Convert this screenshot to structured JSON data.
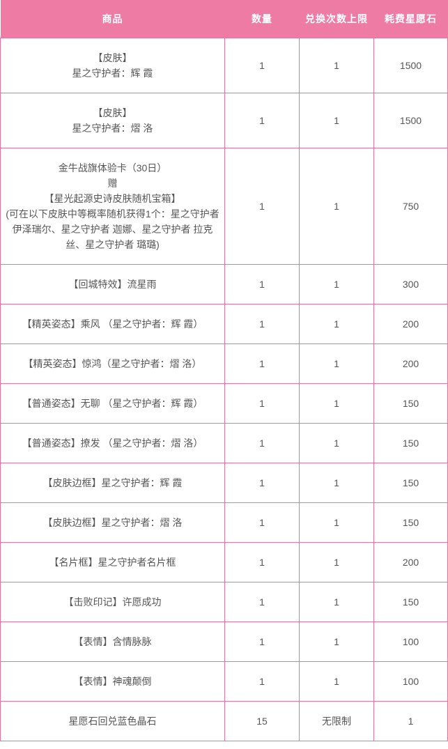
{
  "colors": {
    "header_bg": "#ee7ba4",
    "header_text": "#ffffff",
    "border": "#e8739c",
    "cell_text": "#555555"
  },
  "table": {
    "columns": [
      "商品",
      "数量",
      "兑换次数上限",
      "耗费星愿石"
    ],
    "rows": [
      {
        "product_lines": [
          "【皮肤】",
          "星之守护者：辉 霞"
        ],
        "quantity": "1",
        "limit": "1",
        "cost": "1500"
      },
      {
        "product_lines": [
          "【皮肤】",
          "星之守护者：熠 洛"
        ],
        "quantity": "1",
        "limit": "1",
        "cost": "1500"
      },
      {
        "product_lines": [
          "金牛战旗体验卡（30日）",
          "赠",
          "【星光起源史诗皮肤随机宝箱】",
          "(可在以下皮肤中等概率随机获得1个：星之守护者 伊泽瑞尔、星之守护者 迦娜、星之守护者 拉克丝、星之守护者 璐璐)"
        ],
        "quantity": "1",
        "limit": "1",
        "cost": "750"
      },
      {
        "product_lines": [
          "【回城特效】流星雨"
        ],
        "quantity": "1",
        "limit": "1",
        "cost": "300"
      },
      {
        "product_lines": [
          "【精英姿态】乘风 （星之守护者：辉 霞）"
        ],
        "quantity": "1",
        "limit": "1",
        "cost": "200"
      },
      {
        "product_lines": [
          "【精英姿态】惊鸿（星之守护者：熠 洛）"
        ],
        "quantity": "1",
        "limit": "1",
        "cost": "200"
      },
      {
        "product_lines": [
          "【普通姿态】无聊 （星之守护者：辉 霞）"
        ],
        "quantity": "1",
        "limit": "1",
        "cost": "150"
      },
      {
        "product_lines": [
          "【普通姿态】撩发 （星之守护者：熠 洛）"
        ],
        "quantity": "1",
        "limit": "1",
        "cost": "150"
      },
      {
        "product_lines": [
          "【皮肤边框】星之守护者：辉 霞"
        ],
        "quantity": "1",
        "limit": "1",
        "cost": "150"
      },
      {
        "product_lines": [
          "【皮肤边框】星之守护者：熠 洛"
        ],
        "quantity": "1",
        "limit": "1",
        "cost": "150"
      },
      {
        "product_lines": [
          "【名片框】星之守护者名片框"
        ],
        "quantity": "1",
        "limit": "1",
        "cost": "200"
      },
      {
        "product_lines": [
          "【击败印记】许愿成功"
        ],
        "quantity": "1",
        "limit": "1",
        "cost": "150"
      },
      {
        "product_lines": [
          "【表情】含情脉脉"
        ],
        "quantity": "1",
        "limit": "1",
        "cost": "100"
      },
      {
        "product_lines": [
          "【表情】神魂颠倒"
        ],
        "quantity": "1",
        "limit": "1",
        "cost": "100"
      },
      {
        "product_lines": [
          "星愿石回兑蓝色晶石"
        ],
        "quantity": "15",
        "limit": "无限制",
        "cost": "1"
      }
    ]
  }
}
